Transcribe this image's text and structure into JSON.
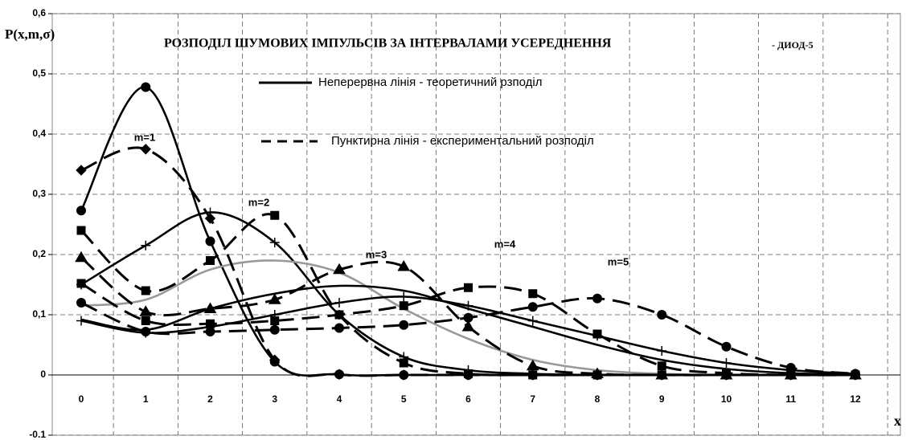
{
  "chart_data": {
    "type": "line",
    "title": "РОЗПОДІЛ ШУМОВИХ ІМПУЛЬСІВ ЗА ІНТЕРВАЛАМИ УСЕРЕДНЕННЯ",
    "subtitle": " - ДИОД-5",
    "y_label": "P(x,m,σ)",
    "x_label": "x",
    "legend_notes": [
      "Неперервна лінія  - теоретичний рзподіл",
      "Пунктирна лінія - експериментальний розподіл"
    ],
    "annotations": [
      "m=1",
      "m=2",
      "m=3",
      "m=4",
      "m=5"
    ],
    "categories": [
      "0",
      "1",
      "2",
      "3",
      "4",
      "5",
      "6",
      "7",
      "8",
      "9",
      "10",
      "11",
      "12"
    ],
    "ylim": [
      -0.1,
      0.6
    ],
    "yticks": [
      -0.1,
      0,
      {
        "value": 0.1,
        "label": "0,1"
      },
      {
        "value": 0.2,
        "label": "0,2"
      },
      {
        "value": 0.3,
        "label": "0,3"
      },
      {
        "value": 0.4,
        "label": "0,4"
      },
      {
        "value": 0.5,
        "label": "0,5"
      },
      {
        "value": 0.6,
        "label": "0,6"
      }
    ],
    "grid": true,
    "series": [
      {
        "color": "#000000",
        "dash": false,
        "marker": "circle",
        "values": [
          0.273,
          0.478,
          0.222,
          0.022,
          0.001,
          0,
          0,
          0,
          0,
          0,
          0,
          0,
          0
        ]
      },
      {
        "color": "#000000",
        "dash": false,
        "marker": "plus",
        "values": [
          0.15,
          0.215,
          0.27,
          0.22,
          0.1,
          0.03,
          0.008,
          0.002,
          0,
          0,
          0,
          0,
          0
        ]
      },
      {
        "color": "#999999",
        "dash": false,
        "marker": "none",
        "values": [
          0.115,
          0.125,
          0.175,
          0.19,
          0.17,
          0.11,
          0.06,
          0.025,
          0.008,
          0.002,
          0,
          0,
          0
        ]
      },
      {
        "color": "#000000",
        "dash": false,
        "marker": "none",
        "values": [
          0.092,
          0.075,
          0.11,
          0.135,
          0.148,
          0.14,
          0.11,
          0.08,
          0.05,
          0.025,
          0.01,
          0.003,
          0.001
        ]
      },
      {
        "color": "#000000",
        "dash": false,
        "marker": "plus",
        "values": [
          0.09,
          0.07,
          0.08,
          0.1,
          0.12,
          0.13,
          0.115,
          0.09,
          0.065,
          0.04,
          0.02,
          0.008,
          0.002
        ]
      },
      {
        "color": "#000000",
        "dash": true,
        "marker": "diamond",
        "values": [
          0.34,
          0.375,
          0.26,
          0.025,
          0.001,
          0,
          0,
          0,
          0,
          0,
          0,
          0,
          0
        ]
      },
      {
        "color": "#000000",
        "dash": true,
        "marker": "square",
        "values": [
          0.24,
          0.14,
          0.19,
          0.265,
          0.1,
          0.02,
          0.002,
          0,
          0,
          0,
          0,
          0,
          0
        ]
      },
      {
        "color": "#000000",
        "dash": true,
        "marker": "triangle",
        "values": [
          0.195,
          0.105,
          0.11,
          0.125,
          0.175,
          0.18,
          0.08,
          0.015,
          0.002,
          0,
          0,
          0,
          0
        ]
      },
      {
        "color": "#000000",
        "dash": true,
        "marker": "square",
        "values": [
          0.152,
          0.09,
          0.085,
          0.09,
          0.1,
          0.115,
          0.145,
          0.135,
          0.068,
          0.015,
          0.003,
          0,
          0
        ]
      },
      {
        "color": "#000000",
        "dash": true,
        "marker": "circle",
        "values": [
          0.12,
          0.072,
          0.072,
          0.075,
          0.078,
          0.083,
          0.095,
          0.113,
          0.127,
          0.1,
          0.047,
          0.012,
          0.002
        ]
      }
    ]
  }
}
